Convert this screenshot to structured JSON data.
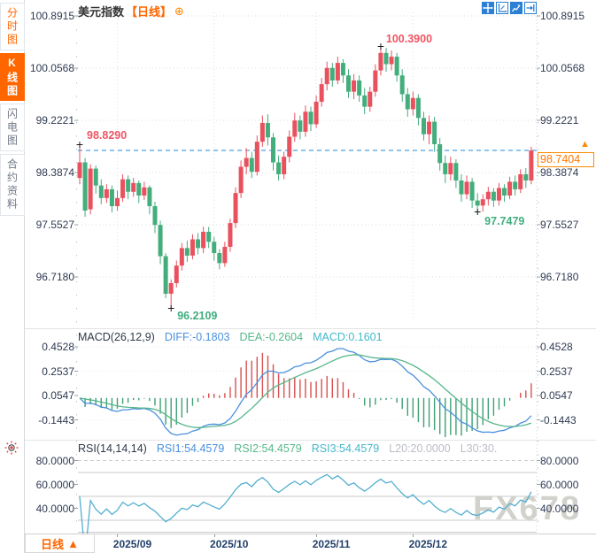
{
  "accent_colors": {
    "orange": "#ff6600",
    "up_red": "#e8515d",
    "down_green": "#43ad7c",
    "diff_blue": "#4a90dd",
    "dea_green": "#56b68b",
    "macd_cyan": "#45b8cc",
    "rsi_blue": "#54aed0",
    "dashed_line_blue": "#2288dd"
  },
  "sidebar": {
    "items": [
      {
        "label": "分时图",
        "active": false
      },
      {
        "label": "K线图",
        "active": true
      },
      {
        "label": "闪电图",
        "active": false
      },
      {
        "label": "合约资料",
        "active": false
      }
    ]
  },
  "header": {
    "title": "美元指数",
    "period_tag": "【日线】",
    "plus_icon": "⊕"
  },
  "toolbar_icons": [
    "move-tool",
    "range-tool",
    "line-chart-tool",
    "exit-right-tool"
  ],
  "main_chart": {
    "y_axis_labels": [
      "100.8915",
      "100.0568",
      "99.2221",
      "98.3874",
      "97.5527",
      "96.7180"
    ],
    "current_price": "98.7404",
    "price_arrow": "▲",
    "annotations": {
      "open_high": "98.8290",
      "period_high": "100.3900",
      "recent_low": "97.7479",
      "period_low": "96.2109"
    }
  },
  "macd_panel": {
    "header": {
      "name": "MACD(26,12,9)",
      "diff": "DIFF:-0.1803",
      "dea": "DEA:-0.2604",
      "macd": "MACD:0.1601"
    },
    "y_axis_labels": [
      "0.4528",
      "0.2537",
      "0.0547",
      "-0.1443"
    ]
  },
  "rsi_panel": {
    "header": {
      "name": "RSI(14,14,14)",
      "rsi1": "RSI1:54.4579",
      "rsi2": "RSI2:54.4579",
      "rsi3": "RSI3:54.4579",
      "l20": "L20:20.0000",
      "l30": "L30:30."
    },
    "y_axis_labels": [
      "80.0000",
      "60.0000",
      "40.0000"
    ]
  },
  "bottom_bar": {
    "period_label": "日线",
    "period_arrow": "▲",
    "x_axis_labels": [
      "2025/09",
      "2025/10",
      "2025/11",
      "2025/12"
    ]
  },
  "watermark": "FX678",
  "chart_data": {
    "type": "candlestick",
    "title": "美元指数 日线 (US Dollar Index, daily)",
    "y_ticks": [
      100.8915,
      100.0568,
      99.2221,
      98.3874,
      97.5527,
      96.718
    ],
    "current_price": 98.7404,
    "x_axis": {
      "labels": [
        "2025/09",
        "2025/10",
        "2025/11",
        "2025/12"
      ],
      "label_indices": [
        7,
        25,
        44,
        62
      ]
    },
    "marked_points": {
      "open_high": {
        "index": 0,
        "price": 98.829
      },
      "period_high": {
        "index": 56,
        "price": 100.39
      },
      "period_low": {
        "index": 17,
        "price": 96.2109
      },
      "recent_low": {
        "index": 74,
        "price": 97.7479
      }
    },
    "candles": [
      [
        98.3,
        98.83,
        98.2,
        98.55
      ],
      [
        98.55,
        98.62,
        97.68,
        97.78
      ],
      [
        97.8,
        98.52,
        97.72,
        98.45
      ],
      [
        98.45,
        98.5,
        98.05,
        98.18
      ],
      [
        98.18,
        98.28,
        97.88,
        97.98
      ],
      [
        97.98,
        98.2,
        97.9,
        98.12
      ],
      [
        98.12,
        98.18,
        97.75,
        97.85
      ],
      [
        97.85,
        98.1,
        97.78,
        97.98
      ],
      [
        97.98,
        98.36,
        97.92,
        98.28
      ],
      [
        98.28,
        98.34,
        97.96,
        98.08
      ],
      [
        98.08,
        98.3,
        98.0,
        98.22
      ],
      [
        98.22,
        98.26,
        97.9,
        98.02
      ],
      [
        98.02,
        98.24,
        97.95,
        98.15
      ],
      [
        98.15,
        98.18,
        97.72,
        97.85
      ],
      [
        97.85,
        97.92,
        97.42,
        97.55
      ],
      [
        97.55,
        97.62,
        96.92,
        97.05
      ],
      [
        97.05,
        97.1,
        96.38,
        96.45
      ],
      [
        96.45,
        96.68,
        96.21,
        96.62
      ],
      [
        96.62,
        96.98,
        96.55,
        96.9
      ],
      [
        96.9,
        97.26,
        96.82,
        97.18
      ],
      [
        97.18,
        97.3,
        96.96,
        97.06
      ],
      [
        97.06,
        97.4,
        97.0,
        97.32
      ],
      [
        97.32,
        97.42,
        97.08,
        97.18
      ],
      [
        97.18,
        97.52,
        97.1,
        97.44
      ],
      [
        97.44,
        97.52,
        97.18,
        97.28
      ],
      [
        97.28,
        97.36,
        96.98,
        97.1
      ],
      [
        97.1,
        97.16,
        96.84,
        96.94
      ],
      [
        96.94,
        97.28,
        96.88,
        97.2
      ],
      [
        97.2,
        97.65,
        97.12,
        97.58
      ],
      [
        97.58,
        98.15,
        97.5,
        98.06
      ],
      [
        98.06,
        98.58,
        97.98,
        98.48
      ],
      [
        98.48,
        98.78,
        98.36,
        98.62
      ],
      [
        98.62,
        98.72,
        98.3,
        98.4
      ],
      [
        98.4,
        98.98,
        98.34,
        98.88
      ],
      [
        98.88,
        99.3,
        98.8,
        99.18
      ],
      [
        99.18,
        99.32,
        98.82,
        98.95
      ],
      [
        98.95,
        99.02,
        98.42,
        98.55
      ],
      [
        98.55,
        98.66,
        98.26,
        98.36
      ],
      [
        98.36,
        98.72,
        98.28,
        98.64
      ],
      [
        98.64,
        99.06,
        98.55,
        98.96
      ],
      [
        98.96,
        99.34,
        98.88,
        99.22
      ],
      [
        99.22,
        99.3,
        98.92,
        99.04
      ],
      [
        99.04,
        99.46,
        98.96,
        99.36
      ],
      [
        99.36,
        99.44,
        99.05,
        99.16
      ],
      [
        99.16,
        99.62,
        99.1,
        99.52
      ],
      [
        99.52,
        99.9,
        99.44,
        99.8
      ],
      [
        99.8,
        100.16,
        99.7,
        100.06
      ],
      [
        100.06,
        100.14,
        99.76,
        99.86
      ],
      [
        99.86,
        100.24,
        99.8,
        100.14
      ],
      [
        100.14,
        100.2,
        99.82,
        99.94
      ],
      [
        99.94,
        100.04,
        99.58,
        99.68
      ],
      [
        99.68,
        99.96,
        99.56,
        99.86
      ],
      [
        99.86,
        99.94,
        99.52,
        99.62
      ],
      [
        99.62,
        99.74,
        99.32,
        99.44
      ],
      [
        99.44,
        99.76,
        99.36,
        99.68
      ],
      [
        99.68,
        100.12,
        99.6,
        100.02
      ],
      [
        100.02,
        100.39,
        99.94,
        100.3
      ],
      [
        100.3,
        100.38,
        100.0,
        100.12
      ],
      [
        100.12,
        100.34,
        100.02,
        100.24
      ],
      [
        100.24,
        100.3,
        99.84,
        99.94
      ],
      [
        99.94,
        100.04,
        99.52,
        99.64
      ],
      [
        99.64,
        99.74,
        99.28,
        99.4
      ],
      [
        99.4,
        99.68,
        99.3,
        99.58
      ],
      [
        99.58,
        99.64,
        99.14,
        99.26
      ],
      [
        99.26,
        99.36,
        98.9,
        99.0
      ],
      [
        99.0,
        99.3,
        98.84,
        99.2
      ],
      [
        99.2,
        99.28,
        98.72,
        98.84
      ],
      [
        98.84,
        98.94,
        98.42,
        98.54
      ],
      [
        98.54,
        98.66,
        98.22,
        98.36
      ],
      [
        98.36,
        98.64,
        98.26,
        98.54
      ],
      [
        98.54,
        98.6,
        98.14,
        98.26
      ],
      [
        98.26,
        98.36,
        97.92,
        98.04
      ],
      [
        98.04,
        98.34,
        97.96,
        98.24
      ],
      [
        98.24,
        98.3,
        97.82,
        97.94
      ],
      [
        97.94,
        98.06,
        97.7479,
        97.86
      ],
      [
        97.86,
        98.04,
        97.76,
        97.96
      ],
      [
        97.96,
        98.16,
        97.86,
        98.08
      ],
      [
        98.08,
        98.14,
        97.84,
        97.94
      ],
      [
        97.94,
        98.22,
        97.86,
        98.14
      ],
      [
        98.14,
        98.2,
        97.92,
        98.02
      ],
      [
        98.02,
        98.32,
        97.96,
        98.24
      ],
      [
        98.24,
        98.34,
        98.02,
        98.12
      ],
      [
        98.12,
        98.44,
        98.06,
        98.36
      ],
      [
        98.36,
        98.46,
        98.14,
        98.26
      ],
      [
        98.26,
        98.8,
        98.2,
        98.74
      ]
    ],
    "indicators": {
      "macd": {
        "params": [
          26,
          12,
          9
        ],
        "last": {
          "diff": -0.1803,
          "dea": -0.2604,
          "macd": 0.1601
        },
        "y_ticks": [
          0.4528,
          0.2537,
          0.0547,
          -0.1443
        ]
      },
      "rsi": {
        "params": [
          14,
          14,
          14
        ],
        "last": {
          "rsi1": 54.4579,
          "rsi2": 54.4579,
          "rsi3": 54.4579
        },
        "levels": [
          80,
          70,
          50,
          30,
          20
        ],
        "y_ticks": [
          80,
          60,
          40
        ]
      }
    }
  }
}
